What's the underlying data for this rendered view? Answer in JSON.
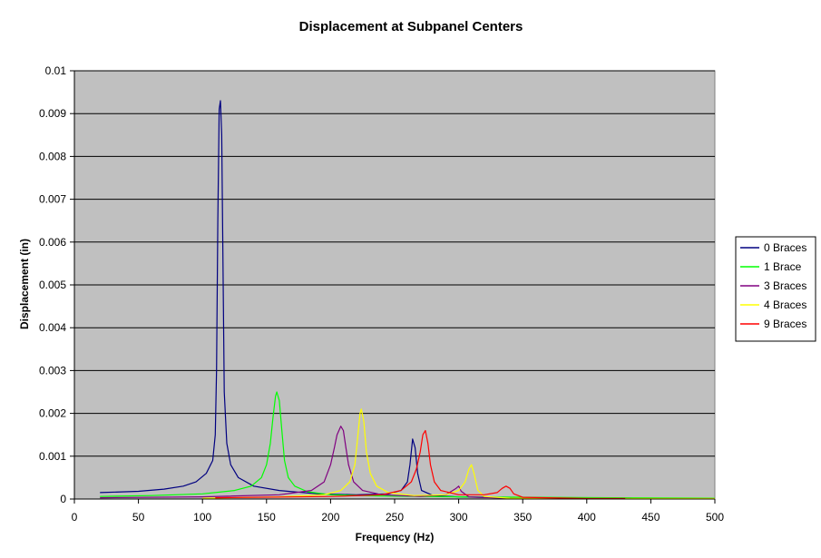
{
  "chart_data": {
    "type": "line",
    "title": "Displacement at Subpanel Centers",
    "xlabel": "Frequency (Hz)",
    "ylabel": "Displacement (in)",
    "xlim": [
      0,
      500
    ],
    "ylim": [
      0,
      0.01
    ],
    "x_ticks": [
      "0",
      "50",
      "100",
      "150",
      "200",
      "250",
      "300",
      "350",
      "400",
      "450",
      "500"
    ],
    "y_ticks": [
      "0",
      "0.001",
      "0.002",
      "0.003",
      "0.004",
      "0.005",
      "0.006",
      "0.007",
      "0.008",
      "0.009",
      "0.01"
    ],
    "grid": "horizontal",
    "plot_background": "#c0c0c0",
    "legend_position": "right",
    "series": [
      {
        "name": "0 Braces",
        "color": "#000080",
        "points": [
          [
            20,
            0.00015
          ],
          [
            50,
            0.00018
          ],
          [
            70,
            0.00023
          ],
          [
            85,
            0.0003
          ],
          [
            95,
            0.0004
          ],
          [
            103,
            0.0006
          ],
          [
            108,
            0.0009
          ],
          [
            110,
            0.0015
          ],
          [
            111,
            0.003
          ],
          [
            112,
            0.0065
          ],
          [
            113,
            0.0091
          ],
          [
            114,
            0.0093
          ],
          [
            115,
            0.0085
          ],
          [
            116,
            0.0055
          ],
          [
            117,
            0.0025
          ],
          [
            119,
            0.0013
          ],
          [
            122,
            0.0008
          ],
          [
            128,
            0.0005
          ],
          [
            140,
            0.0003
          ],
          [
            160,
            0.0002
          ],
          [
            190,
            0.00012
          ],
          [
            220,
            0.0001
          ],
          [
            245,
            0.00012
          ],
          [
            255,
            0.0002
          ],
          [
            260,
            0.0004
          ],
          [
            262,
            0.0008
          ],
          [
            264,
            0.0014
          ],
          [
            266,
            0.0012
          ],
          [
            268,
            0.0006
          ],
          [
            271,
            0.0002
          ],
          [
            280,
            8e-05
          ],
          [
            300,
            5e-05
          ],
          [
            330,
            3e-05
          ],
          [
            400,
            2e-05
          ],
          [
            435,
            1e-05
          ]
        ]
      },
      {
        "name": "1 Brace",
        "color": "#00ff00",
        "points": [
          [
            20,
            6e-05
          ],
          [
            60,
            8e-05
          ],
          [
            100,
            0.00012
          ],
          [
            125,
            0.0002
          ],
          [
            138,
            0.0003
          ],
          [
            146,
            0.0005
          ],
          [
            150,
            0.0008
          ],
          [
            153,
            0.0013
          ],
          [
            155,
            0.0019
          ],
          [
            157,
            0.0024
          ],
          [
            158,
            0.0025
          ],
          [
            160,
            0.0023
          ],
          [
            162,
            0.0016
          ],
          [
            164,
            0.0009
          ],
          [
            167,
            0.0005
          ],
          [
            172,
            0.0003
          ],
          [
            182,
            0.00017
          ],
          [
            200,
            0.0001
          ],
          [
            240,
            7e-05
          ],
          [
            300,
            5e-05
          ],
          [
            360,
            4e-05
          ],
          [
            420,
            3e-05
          ],
          [
            500,
            2e-05
          ]
        ]
      },
      {
        "name": "3 Braces",
        "color": "#800080",
        "points": [
          [
            20,
            3e-05
          ],
          [
            100,
            5e-05
          ],
          [
            160,
            0.0001
          ],
          [
            185,
            0.0002
          ],
          [
            195,
            0.0004
          ],
          [
            200,
            0.0008
          ],
          [
            203,
            0.0012
          ],
          [
            205,
            0.0015
          ],
          [
            208,
            0.0017
          ],
          [
            210,
            0.0016
          ],
          [
            212,
            0.0012
          ],
          [
            214,
            0.0008
          ],
          [
            218,
            0.0004
          ],
          [
            225,
            0.0002
          ],
          [
            240,
            0.0001
          ],
          [
            270,
            6e-05
          ],
          [
            290,
            0.0001
          ],
          [
            298,
            0.00025
          ],
          [
            300,
            0.0003
          ],
          [
            302,
            0.00018
          ],
          [
            308,
            5e-05
          ],
          [
            340,
            2e-05
          ],
          [
            400,
            1e-05
          ],
          [
            435,
            1e-05
          ]
        ]
      },
      {
        "name": "4 Braces",
        "color": "#ffff00",
        "points": [
          [
            100,
            2e-05
          ],
          [
            160,
            5e-05
          ],
          [
            195,
            0.0001
          ],
          [
            208,
            0.0002
          ],
          [
            215,
            0.0004
          ],
          [
            219,
            0.0008
          ],
          [
            221,
            0.0014
          ],
          [
            223,
            0.002
          ],
          [
            224,
            0.0021
          ],
          [
            226,
            0.0018
          ],
          [
            228,
            0.0011
          ],
          [
            231,
            0.0006
          ],
          [
            236,
            0.0003
          ],
          [
            245,
            0.00015
          ],
          [
            265,
            8e-05
          ],
          [
            290,
            0.0001
          ],
          [
            300,
            0.0002
          ],
          [
            305,
            0.0004
          ],
          [
            308,
            0.0007
          ],
          [
            310,
            0.0008
          ],
          [
            312,
            0.0006
          ],
          [
            315,
            0.0002
          ],
          [
            320,
            6e-05
          ],
          [
            340,
            2e-05
          ],
          [
            400,
            1e-05
          ],
          [
            500,
            1e-05
          ]
        ]
      },
      {
        "name": "9 Braces",
        "color": "#ff0000",
        "points": [
          [
            110,
            3e-05
          ],
          [
            200,
            6e-05
          ],
          [
            240,
            0.0001
          ],
          [
            255,
            0.0002
          ],
          [
            263,
            0.0004
          ],
          [
            267,
            0.0007
          ],
          [
            270,
            0.0011
          ],
          [
            272,
            0.0015
          ],
          [
            274,
            0.0016
          ],
          [
            276,
            0.0013
          ],
          [
            278,
            0.0008
          ],
          [
            281,
            0.0004
          ],
          [
            286,
            0.0002
          ],
          [
            300,
            0.0001
          ],
          [
            320,
            0.0001
          ],
          [
            330,
            0.00015
          ],
          [
            334,
            0.00025
          ],
          [
            337,
            0.0003
          ],
          [
            340,
            0.00025
          ],
          [
            343,
            0.00012
          ],
          [
            350,
            4e-05
          ],
          [
            400,
            1e-05
          ],
          [
            430,
            1e-05
          ]
        ]
      }
    ]
  }
}
